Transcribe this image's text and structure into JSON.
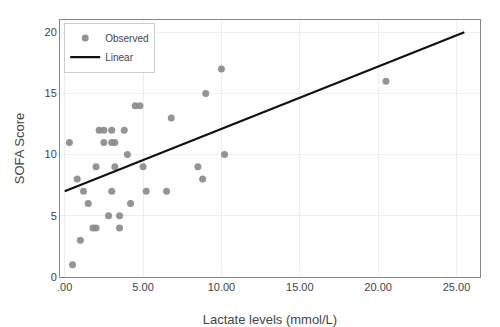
{
  "chart_data": {
    "type": "scatter",
    "xlabel": "Lactate levels (mmol/L)",
    "ylabel": "SOFA Score",
    "series": [
      {
        "name": "Observed",
        "type": "scatter",
        "marker": "circle",
        "color": "#888888",
        "x": [
          0.5,
          1.0,
          1.5,
          1.8,
          2.0,
          2.2,
          2.5,
          2.8,
          3.0,
          3.0,
          3.2,
          3.2,
          3.5,
          3.5,
          4.0,
          4.2,
          4.5,
          5.0,
          5.2,
          6.5,
          6.8,
          8.5,
          8.8,
          9.0,
          10.0,
          10.2,
          20.5,
          0.3,
          0.8,
          1.2,
          2.0,
          2.5,
          3.0,
          3.8,
          4.8
        ],
        "values": [
          1.0,
          3.0,
          6.0,
          4.0,
          4.0,
          12.0,
          11.0,
          5.0,
          7.0,
          12.0,
          11.0,
          9.0,
          5.0,
          4.0,
          10.0,
          6.0,
          14.0,
          9.0,
          7.0,
          7.0,
          13.0,
          9.0,
          8.0,
          15.0,
          17.0,
          10.0,
          16.0,
          11.0,
          8.0,
          7.0,
          9.0,
          12.0,
          11.0,
          12.0,
          14.0
        ]
      },
      {
        "name": "Linear",
        "type": "line",
        "line_style": "solid",
        "color": "#111111",
        "x": [
          0.0,
          25.5
        ],
        "values": [
          7.0,
          20.0
        ]
      }
    ],
    "xlim": [
      -0.3,
      26.5
    ],
    "ylim": [
      0,
      21
    ],
    "xticks": [
      {
        "value": 0.0,
        "label": ".00"
      },
      {
        "value": 5.0,
        "label": "5.00"
      },
      {
        "value": 10.0,
        "label": "10.00"
      },
      {
        "value": 15.0,
        "label": "15.00"
      },
      {
        "value": 20.0,
        "label": "20.00"
      },
      {
        "value": 25.0,
        "label": "25.00"
      }
    ],
    "yticks": [
      0,
      5,
      10,
      15,
      20
    ],
    "grid": true,
    "legend": "top-left"
  }
}
